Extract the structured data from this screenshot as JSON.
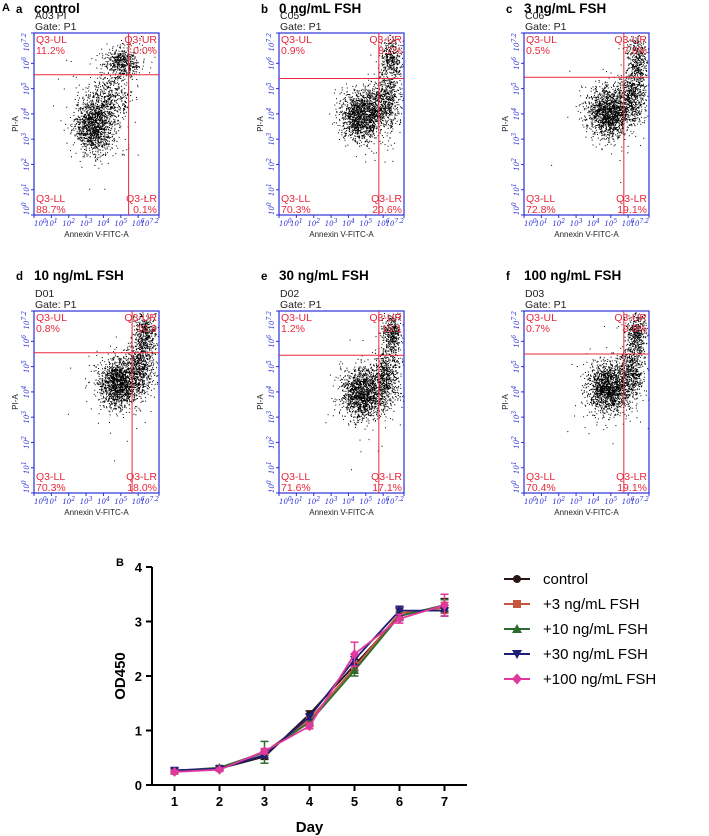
{
  "panel_labels": {
    "a": "A",
    "b": "B"
  },
  "chart_data": [
    {
      "type": "scatter",
      "letter": "a",
      "title": "control",
      "sample": "A03 PI",
      "gate": "Gate: P1",
      "q_ul_label": "Q3-UL",
      "q_ul": "11.2%",
      "q_ur_label": "Q3-UR",
      "q_ur": "0.0%",
      "q_ll_label": "Q3-LL",
      "q_ll": "88.7%",
      "q_lr_label": "Q3-LR",
      "q_lr": "0.1%",
      "xlabel": "Annexin V-FITC-A",
      "ylabel": "PI-A",
      "xticks": [
        "10^0",
        "10^1",
        "10^2",
        "10^3",
        "10^4",
        "10^5",
        "10^6",
        "10^7.2"
      ],
      "yticks": [
        "10^0",
        "10^1",
        "10^2",
        "10^3",
        "10^4",
        "10^5",
        "10^6",
        "10^7.2"
      ],
      "gate_x": 5.45,
      "gate_y": 5.55,
      "xlim": [
        0,
        7.2
      ],
      "ylim": [
        0,
        7.2
      ],
      "clusters": [
        {
          "x": 3.45,
          "y": 3.55,
          "sx": 0.55,
          "sy": 0.55,
          "n": 1300
        },
        {
          "x": 4.4,
          "y": 4.6,
          "sx": 0.6,
          "sy": 0.55,
          "n": 450
        },
        {
          "x": 5.05,
          "y": 6.05,
          "sx": 0.5,
          "sy": 0.3,
          "n": 500
        }
      ]
    },
    {
      "type": "scatter",
      "letter": "b",
      "title": "0 ng/mL FSH",
      "sample": "C05",
      "gate": "Gate: P1",
      "q_ul_label": "Q3-UL",
      "q_ul": "0.9%",
      "q_ur_label": "Q3-UR",
      "q_ur": "8.2%",
      "q_ll_label": "Q3-LL",
      "q_ll": "70.3%",
      "q_lr_label": "Q3-LR",
      "q_lr": "20.6%",
      "xlabel": "Annexin V-FITC-A",
      "ylabel": "PI-A",
      "xticks": [
        "10^0",
        "10^1",
        "10^2",
        "10^3",
        "10^4",
        "10^5",
        "10^6",
        "10^7.2"
      ],
      "yticks": [
        "10^0",
        "10^1",
        "10^2",
        "10^3",
        "10^4",
        "10^5",
        "10^6",
        "10^7.2"
      ],
      "gate_x": 5.75,
      "gate_y": 5.4,
      "xlim": [
        0,
        7.2
      ],
      "ylim": [
        0,
        7.2
      ],
      "clusters": [
        {
          "x": 4.75,
          "y": 3.95,
          "sx": 0.6,
          "sy": 0.5,
          "n": 1500
        },
        {
          "x": 6.15,
          "y": 4.55,
          "sx": 0.4,
          "sy": 0.55,
          "n": 600
        },
        {
          "x": 6.45,
          "y": 6.15,
          "sx": 0.3,
          "sy": 0.45,
          "n": 350
        }
      ]
    },
    {
      "type": "scatter",
      "letter": "c",
      "title": "3 ng/mL FSH",
      "sample": "C06",
      "gate": "Gate: P1",
      "q_ul_label": "Q3-UL",
      "q_ul": "0.5%",
      "q_ur_label": "Q3-UR",
      "q_ur": "7.6%",
      "q_ll_label": "Q3-LL",
      "q_ll": "72.8%",
      "q_lr_label": "Q3-LR",
      "q_lr": "19.1%",
      "xlabel": "Annexin V-FITC-A",
      "ylabel": "PI-A",
      "xticks": [
        "10^0",
        "10^1",
        "10^2",
        "10^3",
        "10^4",
        "10^5",
        "10^6",
        "10^7.2"
      ],
      "yticks": [
        "10^0",
        "10^1",
        "10^2",
        "10^3",
        "10^4",
        "10^5",
        "10^6",
        "10^7.2"
      ],
      "gate_x": 5.75,
      "gate_y": 5.45,
      "xlim": [
        0,
        7.2
      ],
      "ylim": [
        0,
        7.2
      ],
      "clusters": [
        {
          "x": 4.85,
          "y": 4.05,
          "sx": 0.6,
          "sy": 0.5,
          "n": 1500
        },
        {
          "x": 6.2,
          "y": 4.7,
          "sx": 0.4,
          "sy": 0.55,
          "n": 600
        },
        {
          "x": 6.5,
          "y": 6.2,
          "sx": 0.3,
          "sy": 0.45,
          "n": 350
        }
      ]
    },
    {
      "type": "scatter",
      "letter": "d",
      "title": "10 ng/mL FSH",
      "sample": "D01",
      "gate": "Gate: P1",
      "q_ul_label": "Q3-UL",
      "q_ul": "0.8%",
      "q_ur_label": "Q3-UR",
      "q_ur": "10.9",
      "q_ll_label": "Q3-LL",
      "q_ll": "70.3%",
      "q_lr_label": "Q3-LR",
      "q_lr": "18.0%",
      "xlabel": "Annexin V-FITC-A",
      "ylabel": "PI-A",
      "xticks": [
        "10^0",
        "10^1",
        "10^2",
        "10^3",
        "10^4",
        "10^5",
        "10^6",
        "10^7.2"
      ],
      "yticks": [
        "10^0",
        "10^1",
        "10^2",
        "10^3",
        "10^4",
        "10^5",
        "10^6",
        "10^7.2"
      ],
      "gate_x": 5.65,
      "gate_y": 5.55,
      "xlim": [
        0,
        7.2
      ],
      "ylim": [
        0,
        7.2
      ],
      "clusters": [
        {
          "x": 4.85,
          "y": 4.35,
          "sx": 0.6,
          "sy": 0.5,
          "n": 1500
        },
        {
          "x": 6.15,
          "y": 5.0,
          "sx": 0.4,
          "sy": 0.55,
          "n": 600
        },
        {
          "x": 6.4,
          "y": 6.3,
          "sx": 0.3,
          "sy": 0.45,
          "n": 400
        }
      ]
    },
    {
      "type": "scatter",
      "letter": "e",
      "title": "30 ng/mL FSH",
      "sample": "D02",
      "gate": "Gate: P1",
      "q_ul_label": "Q3-UL",
      "q_ul": "1.2%",
      "q_ur_label": "Q3-UR",
      "q_ur": "10.1",
      "q_ll_label": "Q3-LL",
      "q_ll": "71.6%",
      "q_lr_label": "Q3-LR",
      "q_lr": "17.1%",
      "xlabel": "Annexin V-FITC-A",
      "ylabel": "PI-A",
      "xticks": [
        "10^0",
        "10^1",
        "10^2",
        "10^3",
        "10^4",
        "10^5",
        "10^6",
        "10^7.2"
      ],
      "yticks": [
        "10^0",
        "10^1",
        "10^2",
        "10^3",
        "10^4",
        "10^5",
        "10^6",
        "10^7.2"
      ],
      "gate_x": 5.75,
      "gate_y": 5.45,
      "xlim": [
        0,
        7.2
      ],
      "ylim": [
        0,
        7.2
      ],
      "clusters": [
        {
          "x": 4.8,
          "y": 3.95,
          "sx": 0.6,
          "sy": 0.5,
          "n": 1500
        },
        {
          "x": 6.15,
          "y": 4.65,
          "sx": 0.4,
          "sy": 0.55,
          "n": 600
        },
        {
          "x": 6.5,
          "y": 6.3,
          "sx": 0.28,
          "sy": 0.45,
          "n": 400
        }
      ]
    },
    {
      "type": "scatter",
      "letter": "f",
      "title": "100 ng/mL FSH",
      "sample": "D03",
      "gate": "Gate: P1",
      "q_ul_label": "Q3-UL",
      "q_ul": "0.7%",
      "q_ur_label": "Q3-UR",
      "q_ur": "9.8%",
      "q_ll_label": "Q3-LL",
      "q_ll": "70.4%",
      "q_lr_label": "Q3-LR",
      "q_lr": "19.1%",
      "xlabel": "Annexin V-FITC-A",
      "ylabel": "PI-A",
      "xticks": [
        "10^0",
        "10^1",
        "10^2",
        "10^3",
        "10^4",
        "10^5",
        "10^6",
        "10^7.2"
      ],
      "yticks": [
        "10^0",
        "10^1",
        "10^2",
        "10^3",
        "10^4",
        "10^5",
        "10^6",
        "10^7.2"
      ],
      "gate_x": 5.75,
      "gate_y": 5.5,
      "xlim": [
        0,
        7.2
      ],
      "ylim": [
        0,
        7.2
      ],
      "clusters": [
        {
          "x": 4.8,
          "y": 4.15,
          "sx": 0.6,
          "sy": 0.5,
          "n": 1500
        },
        {
          "x": 6.1,
          "y": 4.8,
          "sx": 0.4,
          "sy": 0.55,
          "n": 600
        },
        {
          "x": 6.45,
          "y": 6.3,
          "sx": 0.28,
          "sy": 0.45,
          "n": 400
        }
      ]
    },
    {
      "type": "line",
      "xlabel": "Day",
      "ylabel": "OD450",
      "x": [
        1,
        2,
        3,
        4,
        5,
        6,
        7
      ],
      "xlim": [
        0.5,
        7.5
      ],
      "ylim": [
        0,
        4
      ],
      "yticks": [
        0,
        1,
        2,
        3,
        4
      ],
      "series": [
        {
          "name": "control",
          "color": "#2a1414",
          "marker": "circle",
          "values": [
            0.26,
            0.3,
            0.52,
            1.3,
            2.2,
            3.1,
            3.3
          ],
          "errors": [
            0.03,
            0.03,
            0.05,
            0.06,
            0.1,
            0.08,
            0.12
          ]
        },
        {
          "name": "+3 ng/mL FSH",
          "color": "#c8553d",
          "marker": "square",
          "values": [
            0.25,
            0.31,
            0.6,
            1.2,
            2.15,
            3.15,
            3.25
          ],
          "errors": [
            0.03,
            0.03,
            0.06,
            0.05,
            0.1,
            0.08,
            0.1
          ]
        },
        {
          "name": "+10 ng/mL FSH",
          "color": "#2e6b2e",
          "marker": "triangle-up",
          "values": [
            0.26,
            0.32,
            0.6,
            1.15,
            2.1,
            3.1,
            3.3
          ],
          "errors": [
            0.03,
            0.03,
            0.2,
            0.05,
            0.1,
            0.08,
            0.1
          ]
        },
        {
          "name": "+30 ng/mL FSH",
          "color": "#1f1f7a",
          "marker": "triangle-down",
          "values": [
            0.27,
            0.3,
            0.55,
            1.25,
            2.3,
            3.2,
            3.2
          ],
          "errors": [
            0.03,
            0.03,
            0.05,
            0.05,
            0.1,
            0.08,
            0.1
          ]
        },
        {
          "name": "+100 ng/mL FSH",
          "color": "#e0389c",
          "marker": "diamond",
          "values": [
            0.24,
            0.28,
            0.62,
            1.08,
            2.4,
            3.05,
            3.3
          ],
          "errors": [
            0.03,
            0.03,
            0.05,
            0.05,
            0.22,
            0.08,
            0.2
          ]
        }
      ]
    }
  ]
}
